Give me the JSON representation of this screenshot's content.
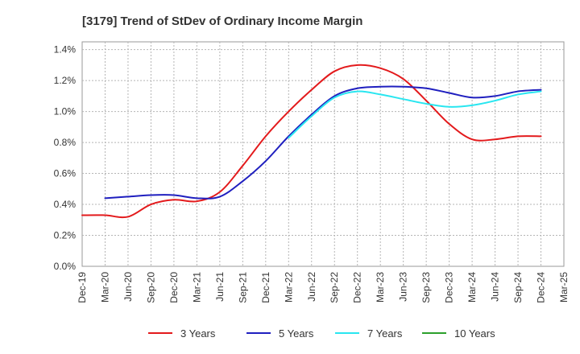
{
  "chart_data": {
    "type": "line",
    "title": "[3179]  Trend of StDev of Ordinary Income Margin",
    "xlabel": "",
    "ylabel": "",
    "x_ticks": [
      "Dec-19",
      "Mar-20",
      "Jun-20",
      "Sep-20",
      "Dec-20",
      "Mar-21",
      "Jun-21",
      "Sep-21",
      "Dec-21",
      "Mar-22",
      "Jun-22",
      "Sep-22",
      "Dec-22",
      "Mar-23",
      "Jun-23",
      "Sep-23",
      "Dec-23",
      "Mar-24",
      "Jun-24",
      "Sep-24",
      "Dec-24",
      "Mar-25"
    ],
    "y_ticks": [
      "0.0%",
      "0.2%",
      "0.4%",
      "0.6%",
      "0.8%",
      "1.0%",
      "1.2%",
      "1.4%"
    ],
    "ylim": [
      0,
      1.45
    ],
    "grid": true,
    "legend_position": "bottom",
    "series": [
      {
        "name": "3 Years",
        "color": "#e31a1c",
        "x": [
          "Dec-19",
          "Mar-20",
          "Jun-20",
          "Sep-20",
          "Dec-20",
          "Mar-21",
          "Jun-21",
          "Sep-21",
          "Dec-21",
          "Mar-22",
          "Jun-22",
          "Sep-22",
          "Dec-22",
          "Mar-23",
          "Jun-23",
          "Sep-23",
          "Dec-23",
          "Mar-24",
          "Jun-24",
          "Sep-24",
          "Dec-24"
        ],
        "values": [
          0.33,
          0.33,
          0.32,
          0.4,
          0.43,
          0.42,
          0.48,
          0.65,
          0.84,
          1.0,
          1.14,
          1.26,
          1.3,
          1.28,
          1.21,
          1.07,
          0.92,
          0.82,
          0.82,
          0.84,
          0.84
        ]
      },
      {
        "name": "5 Years",
        "color": "#1f1fbf",
        "x": [
          "Mar-20",
          "Jun-20",
          "Sep-20",
          "Dec-20",
          "Mar-21",
          "Jun-21",
          "Sep-21",
          "Dec-21",
          "Mar-22",
          "Jun-22",
          "Sep-22",
          "Dec-22",
          "Mar-23",
          "Jun-23",
          "Sep-23",
          "Dec-23",
          "Mar-24",
          "Jun-24",
          "Sep-24",
          "Dec-24"
        ],
        "values": [
          0.44,
          0.45,
          0.46,
          0.46,
          0.44,
          0.45,
          0.55,
          0.68,
          0.84,
          0.98,
          1.1,
          1.15,
          1.16,
          1.16,
          1.15,
          1.12,
          1.09,
          1.1,
          1.13,
          1.14
        ]
      },
      {
        "name": "7 Years",
        "color": "#29e6f0",
        "x": [
          "Mar-22",
          "Jun-22",
          "Sep-22",
          "Dec-22",
          "Mar-23",
          "Jun-23",
          "Sep-23",
          "Dec-23",
          "Mar-24",
          "Jun-24",
          "Sep-24",
          "Dec-24"
        ],
        "values": [
          0.83,
          0.97,
          1.09,
          1.13,
          1.11,
          1.08,
          1.05,
          1.03,
          1.04,
          1.07,
          1.11,
          1.13
        ]
      },
      {
        "name": "10 Years",
        "color": "#2ca02c",
        "x": [],
        "values": []
      }
    ]
  }
}
